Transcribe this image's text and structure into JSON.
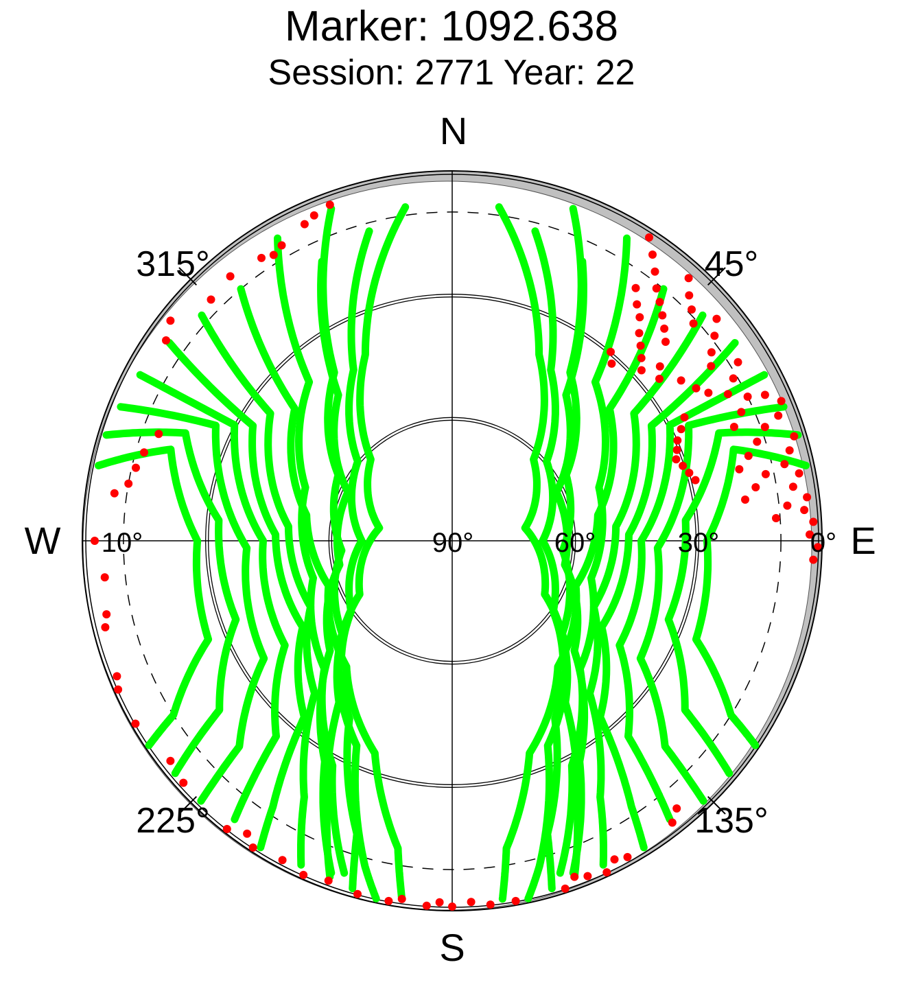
{
  "chart_data": {
    "type": "scatter",
    "subtype": "polar-skyplot",
    "title": "Marker: 1092.638",
    "subtitle": "Session: 2771 Year: 22",
    "direction_labels": {
      "north": "N",
      "east": "E",
      "south": "S",
      "west": "W"
    },
    "azimuth_labels": [
      "45°",
      "135°",
      "225°",
      "315°"
    ],
    "elevation_labels": [
      "90°",
      "60°",
      "30°",
      "0°",
      "10°"
    ],
    "elevation_circles_deg": [
      60,
      30,
      0
    ],
    "elevation_mask_deg": 10,
    "colors": {
      "above_mask": "#00ff00",
      "below_mask": "#ff0000",
      "obstruction": "#c0c0c0"
    },
    "series": [
      {
        "color": "#00ff00"
      },
      {
        "color": "#ff0000"
      }
    ],
    "tracks": [
      {
        "points": [
          [
            320,
            10
          ],
          [
            310,
            40
          ],
          [
            280,
            54
          ],
          [
            250,
            58
          ],
          [
            220,
            50
          ],
          [
            200,
            35
          ],
          [
            190,
            14
          ],
          [
            188,
            2
          ]
        ]
      },
      {
        "points": [
          [
            330,
            5
          ],
          [
            318,
            38
          ],
          [
            290,
            52
          ],
          [
            255,
            55
          ],
          [
            225,
            46
          ],
          [
            208,
            28
          ],
          [
            198,
            5
          ]
        ]
      },
      {
        "points": [
          [
            312,
            8
          ],
          [
            305,
            36
          ],
          [
            275,
            50
          ],
          [
            245,
            52
          ],
          [
            222,
            40
          ],
          [
            210,
            18
          ],
          [
            205,
            3
          ]
        ]
      },
      {
        "points": [
          [
            305,
            6
          ],
          [
            300,
            34
          ],
          [
            272,
            47
          ],
          [
            240,
            48
          ],
          [
            220,
            34
          ],
          [
            214,
            12
          ],
          [
            212,
            2
          ]
        ]
      },
      {
        "points": [
          [
            298,
            4
          ],
          [
            298,
            30
          ],
          [
            270,
            44
          ],
          [
            238,
            42
          ],
          [
            222,
            26
          ],
          [
            218,
            4
          ]
        ]
      },
      {
        "points": [
          [
            292,
            3
          ],
          [
            296,
            26
          ],
          [
            268,
            40
          ],
          [
            238,
            36
          ],
          [
            226,
            18
          ],
          [
            224,
            2
          ]
        ]
      },
      {
        "points": [
          [
            340,
            4
          ],
          [
            325,
            40
          ],
          [
            300,
            58
          ],
          [
            265,
            63
          ],
          [
            230,
            55
          ],
          [
            205,
            35
          ],
          [
            195,
            8
          ],
          [
            192,
            1
          ]
        ]
      },
      {
        "points": [
          [
            345,
            12
          ],
          [
            330,
            42
          ],
          [
            310,
            60
          ],
          [
            270,
            68
          ],
          [
            235,
            60
          ],
          [
            210,
            40
          ],
          [
            198,
            15
          ],
          [
            196,
            2
          ]
        ]
      },
      {
        "points": [
          [
            287,
            2
          ],
          [
            292,
            20
          ],
          [
            275,
            33
          ],
          [
            250,
            34
          ],
          [
            234,
            20
          ],
          [
            230,
            2
          ]
        ]
      },
      {
        "points": [
          [
            282,
            2
          ],
          [
            288,
            18
          ],
          [
            270,
            28
          ],
          [
            248,
            26
          ],
          [
            238,
            10
          ],
          [
            236,
            1
          ]
        ]
      },
      {
        "points": [
          [
            335,
            15
          ],
          [
            322,
            45
          ],
          [
            295,
            62
          ],
          [
            258,
            62
          ],
          [
            228,
            50
          ],
          [
            210,
            28
          ],
          [
            200,
            4
          ]
        ]
      },
      {
        "points": [
          [
            352,
            8
          ],
          [
            335,
            40
          ],
          [
            315,
            62
          ],
          [
            280,
            72
          ],
          [
            240,
            64
          ],
          [
            215,
            42
          ],
          [
            205,
            18
          ],
          [
            200,
            3
          ]
        ]
      },
      {
        "points": [
          [
            40,
            10
          ],
          [
            50,
            40
          ],
          [
            80,
            54
          ],
          [
            110,
            58
          ],
          [
            140,
            50
          ],
          [
            160,
            35
          ],
          [
            170,
            14
          ],
          [
            172,
            2
          ]
        ]
      },
      {
        "points": [
          [
            30,
            5
          ],
          [
            42,
            38
          ],
          [
            70,
            52
          ],
          [
            105,
            55
          ],
          [
            135,
            46
          ],
          [
            152,
            28
          ],
          [
            162,
            5
          ]
        ]
      },
      {
        "points": [
          [
            48,
            8
          ],
          [
            55,
            36
          ],
          [
            85,
            50
          ],
          [
            115,
            52
          ],
          [
            138,
            40
          ],
          [
            150,
            18
          ],
          [
            155,
            3
          ]
        ]
      },
      {
        "points": [
          [
            55,
            6
          ],
          [
            60,
            34
          ],
          [
            88,
            47
          ],
          [
            120,
            48
          ],
          [
            140,
            34
          ],
          [
            146,
            12
          ],
          [
            148,
            2
          ]
        ]
      },
      {
        "points": [
          [
            62,
            4
          ],
          [
            62,
            30
          ],
          [
            90,
            44
          ],
          [
            122,
            42
          ],
          [
            138,
            26
          ],
          [
            142,
            4
          ]
        ]
      },
      {
        "points": [
          [
            68,
            3
          ],
          [
            64,
            26
          ],
          [
            92,
            40
          ],
          [
            122,
            36
          ],
          [
            134,
            18
          ],
          [
            136,
            2
          ]
        ]
      },
      {
        "points": [
          [
            20,
            4
          ],
          [
            35,
            40
          ],
          [
            60,
            58
          ],
          [
            95,
            63
          ],
          [
            130,
            55
          ],
          [
            155,
            35
          ],
          [
            165,
            8
          ],
          [
            168,
            1
          ]
        ]
      },
      {
        "points": [
          [
            15,
            12
          ],
          [
            30,
            42
          ],
          [
            50,
            60
          ],
          [
            90,
            68
          ],
          [
            125,
            60
          ],
          [
            150,
            40
          ],
          [
            162,
            15
          ],
          [
            164,
            2
          ]
        ]
      },
      {
        "points": [
          [
            73,
            2
          ],
          [
            68,
            20
          ],
          [
            85,
            33
          ],
          [
            110,
            34
          ],
          [
            126,
            20
          ],
          [
            130,
            2
          ]
        ]
      },
      {
        "points": [
          [
            78,
            2
          ],
          [
            72,
            18
          ],
          [
            90,
            28
          ],
          [
            112,
            26
          ],
          [
            122,
            10
          ],
          [
            124,
            1
          ]
        ]
      },
      {
        "points": [
          [
            25,
            15
          ],
          [
            38,
            45
          ],
          [
            65,
            62
          ],
          [
            102,
            62
          ],
          [
            132,
            50
          ],
          [
            150,
            28
          ],
          [
            160,
            4
          ]
        ]
      },
      {
        "points": [
          [
            8,
            8
          ],
          [
            25,
            40
          ],
          [
            45,
            62
          ],
          [
            80,
            72
          ],
          [
            120,
            64
          ],
          [
            145,
            42
          ],
          [
            155,
            18
          ],
          [
            160,
            3
          ]
        ]
      }
    ],
    "red_points": [
      [
        33,
        2
      ],
      [
        35,
        5
      ],
      [
        37,
        8
      ],
      [
        39,
        11
      ],
      [
        41,
        13
      ],
      [
        43,
        15
      ],
      [
        45,
        17
      ],
      [
        47,
        19
      ],
      [
        36,
        14
      ],
      [
        38,
        17
      ],
      [
        40,
        19
      ],
      [
        42,
        22
      ],
      [
        44,
        24
      ],
      [
        46,
        26
      ],
      [
        48,
        28
      ],
      [
        42,
        4
      ],
      [
        44,
        7
      ],
      [
        46,
        9
      ],
      [
        48,
        11
      ],
      [
        50,
        6
      ],
      [
        52,
        9
      ],
      [
        54,
        12
      ],
      [
        56,
        14
      ],
      [
        58,
        8
      ],
      [
        60,
        11
      ],
      [
        62,
        14
      ],
      [
        64,
        10
      ],
      [
        66,
        13
      ],
      [
        68,
        16
      ],
      [
        70,
        9
      ],
      [
        72,
        12
      ],
      [
        74,
        15
      ],
      [
        76,
        18
      ],
      [
        78,
        12
      ],
      [
        80,
        15
      ],
      [
        82,
        18
      ],
      [
        84,
        8
      ],
      [
        86,
        11
      ],
      [
        40,
        30
      ],
      [
        42,
        32
      ],
      [
        50,
        24
      ],
      [
        52,
        26
      ],
      [
        55,
        22
      ],
      [
        58,
        20
      ],
      [
        60,
        18
      ],
      [
        65,
        6
      ],
      [
        67,
        3
      ],
      [
        69,
        5
      ],
      [
        73,
        3
      ],
      [
        75,
        5
      ],
      [
        77,
        7
      ],
      [
        79,
        4
      ],
      [
        81,
        6
      ],
      [
        83,
        3
      ],
      [
        85,
        4
      ],
      [
        87,
        2
      ],
      [
        89,
        3
      ],
      [
        91,
        1
      ],
      [
        93,
        2
      ],
      [
        62,
        26
      ],
      [
        64,
        28
      ],
      [
        66,
        30
      ],
      [
        68,
        31
      ],
      [
        70,
        32
      ],
      [
        72,
        31
      ],
      [
        74,
        30
      ],
      [
        76,
        29
      ],
      [
        140,
        5
      ],
      [
        142,
        3
      ],
      [
        151,
        2
      ],
      [
        153,
        3
      ],
      [
        155,
        1
      ],
      [
        158,
        2
      ],
      [
        160,
        3
      ],
      [
        162,
        1
      ],
      [
        170,
        1
      ],
      [
        174,
        1
      ],
      [
        177,
        2
      ],
      [
        180,
        1
      ],
      [
        182,
        2
      ],
      [
        184,
        1
      ],
      [
        188,
        2
      ],
      [
        190,
        1
      ],
      [
        195,
        1
      ],
      [
        200,
        2
      ],
      [
        204,
        1
      ],
      [
        208,
        2
      ],
      [
        213,
        1
      ],
      [
        215,
        3
      ],
      [
        218,
        1
      ],
      [
        228,
        2
      ],
      [
        232,
        3
      ],
      [
        240,
        1
      ],
      [
        246,
        1
      ],
      [
        248,
        2
      ],
      [
        256,
        3
      ],
      [
        258,
        4
      ],
      [
        264,
        5
      ],
      [
        270,
        3
      ],
      [
        278,
        7
      ],
      [
        280,
        10
      ],
      [
        283,
        11
      ],
      [
        286,
        12
      ],
      [
        290,
        14
      ],
      [
        305,
        5
      ],
      [
        308,
        3
      ],
      [
        315,
        7
      ],
      [
        320,
        6
      ],
      [
        326,
        7
      ],
      [
        328,
        8
      ],
      [
        330,
        7
      ],
      [
        335,
        5
      ],
      [
        337,
        4
      ],
      [
        340,
        3
      ]
    ]
  }
}
